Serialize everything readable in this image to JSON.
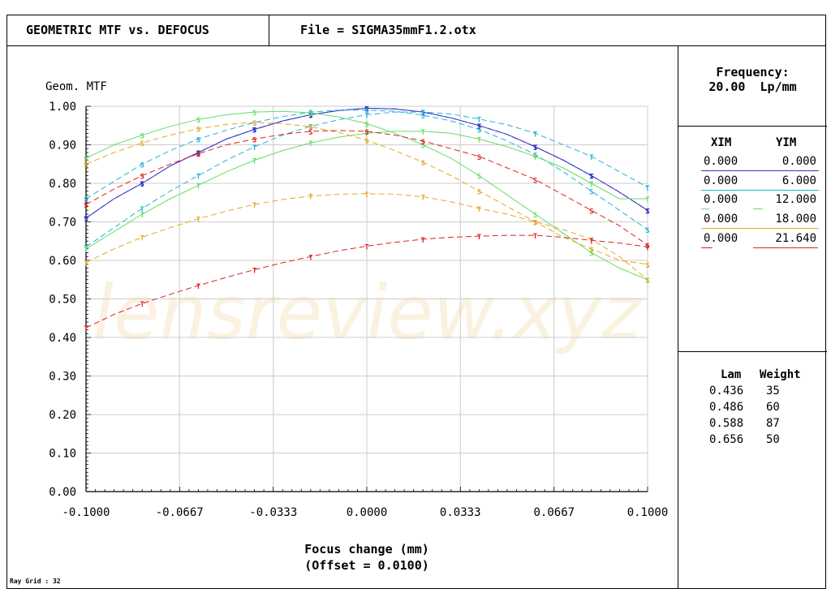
{
  "header": {
    "title": "GEOMETRIC MTF vs. DEFOCUS",
    "file": "File = SIGMA35mmF1.2.otx"
  },
  "side": {
    "frequency_label": "Frequency:",
    "frequency_value": "20.00  Lp/mm",
    "field_headers": [
      "XIM",
      "YIM"
    ],
    "fields": [
      {
        "xim": "0.000",
        "yim": "0.000",
        "color": "#3333cc"
      },
      {
        "xim": "0.000",
        "yim": "6.000",
        "color": "#22b4d8"
      },
      {
        "xim": "0.000",
        "yim": "12.000",
        "color": "#66dd66"
      },
      {
        "xim": "0.000",
        "yim": "18.000",
        "color": "#e6a822"
      },
      {
        "xim": "0.000",
        "yim": "21.640",
        "color": "#dd2222"
      }
    ],
    "wavelength_headers": [
      "Lam",
      "Weight"
    ],
    "wavelengths": [
      {
        "lam": "0.436",
        "weight": "35"
      },
      {
        "lam": "0.486",
        "weight": "60"
      },
      {
        "lam": "0.588",
        "weight": "87"
      },
      {
        "lam": "0.656",
        "weight": "50"
      }
    ]
  },
  "footer": {
    "ray_grid": "Ray Grid : 32"
  },
  "watermark": "lensreview.xyz",
  "chart_data": {
    "type": "line",
    "title": "",
    "ylabel": "Geom. MTF",
    "xlabel": "Focus change (mm)",
    "xlabel2": "(Offset = 0.0100)",
    "xlim": [
      -0.1,
      0.1
    ],
    "ylim": [
      0.0,
      1.0
    ],
    "grid": true,
    "xticks": [
      "-0.1000",
      "-0.0667",
      "-0.0333",
      "0.0000",
      "0.0333",
      "0.0667",
      "0.1000"
    ],
    "xtick_values": [
      -0.1,
      -0.0667,
      -0.0333,
      0.0,
      0.0333,
      0.0667,
      0.1
    ],
    "yticks": [
      "0.00",
      "0.10",
      "0.20",
      "0.30",
      "0.40",
      "0.50",
      "0.60",
      "0.70",
      "0.80",
      "0.90",
      "1.00"
    ],
    "x": [
      -0.1,
      -0.09,
      -0.08,
      -0.07,
      -0.06,
      -0.05,
      -0.04,
      -0.03,
      -0.02,
      -0.01,
      0.0,
      0.01,
      0.02,
      0.03,
      0.04,
      0.05,
      0.06,
      0.07,
      0.08,
      0.09,
      0.1
    ],
    "series": [
      {
        "name": "YIM 0.000 S",
        "color": "#3333cc",
        "dash": false,
        "marker": "S",
        "values": [
          0.71,
          0.76,
          0.8,
          0.845,
          0.88,
          0.915,
          0.94,
          0.962,
          0.978,
          0.989,
          0.995,
          0.993,
          0.985,
          0.97,
          0.95,
          0.927,
          0.895,
          0.86,
          0.82,
          0.777,
          0.73
        ]
      },
      {
        "name": "YIM 0.000 T",
        "color": "#3333cc",
        "dash": true,
        "marker": "T",
        "values": [
          0.71,
          0.76,
          0.8,
          0.845,
          0.88,
          0.915,
          0.94,
          0.962,
          0.978,
          0.989,
          0.995,
          0.993,
          0.985,
          0.97,
          0.95,
          0.927,
          0.895,
          0.86,
          0.82,
          0.777,
          0.73
        ]
      },
      {
        "name": "YIM 6.000 S",
        "color": "#22b4d8",
        "dash": true,
        "marker": "S",
        "values": [
          0.76,
          0.805,
          0.85,
          0.885,
          0.915,
          0.938,
          0.958,
          0.973,
          0.985,
          0.99,
          0.99,
          0.987,
          0.977,
          0.962,
          0.94,
          0.91,
          0.875,
          0.83,
          0.78,
          0.73,
          0.68
        ]
      },
      {
        "name": "YIM 6.000 T",
        "color": "#22b4d8",
        "dash": true,
        "marker": "T",
        "values": [
          0.635,
          0.685,
          0.735,
          0.78,
          0.82,
          0.86,
          0.895,
          0.925,
          0.948,
          0.965,
          0.978,
          0.985,
          0.985,
          0.98,
          0.967,
          0.952,
          0.93,
          0.9,
          0.87,
          0.83,
          0.79
        ]
      },
      {
        "name": "YIM 12.000 S",
        "color": "#66dd66",
        "dash": false,
        "marker": "S",
        "values": [
          0.865,
          0.9,
          0.925,
          0.948,
          0.966,
          0.978,
          0.985,
          0.987,
          0.983,
          0.972,
          0.955,
          0.93,
          0.9,
          0.865,
          0.82,
          0.77,
          0.72,
          0.67,
          0.62,
          0.58,
          0.55
        ]
      },
      {
        "name": "YIM 12.000 T",
        "color": "#66dd66",
        "dash": false,
        "marker": "T",
        "values": [
          0.63,
          0.675,
          0.72,
          0.76,
          0.795,
          0.83,
          0.86,
          0.885,
          0.905,
          0.92,
          0.93,
          0.935,
          0.935,
          0.93,
          0.915,
          0.895,
          0.87,
          0.84,
          0.8,
          0.76,
          0.76
        ]
      },
      {
        "name": "YIM 18.000 S",
        "color": "#e6a822",
        "dash": true,
        "marker": "S",
        "values": [
          0.85,
          0.88,
          0.905,
          0.925,
          0.942,
          0.953,
          0.958,
          0.955,
          0.947,
          0.932,
          0.912,
          0.885,
          0.855,
          0.82,
          0.78,
          0.74,
          0.7,
          0.66,
          0.63,
          0.6,
          0.59
        ]
      },
      {
        "name": "YIM 18.000 T",
        "color": "#e6a822",
        "dash": true,
        "marker": "T",
        "values": [
          0.595,
          0.63,
          0.66,
          0.685,
          0.708,
          0.728,
          0.745,
          0.758,
          0.767,
          0.772,
          0.773,
          0.772,
          0.765,
          0.752,
          0.735,
          0.72,
          0.7,
          0.68,
          0.655,
          0.61,
          0.55
        ]
      },
      {
        "name": "YIM 21.640 S",
        "color": "#dd2222",
        "dash": true,
        "marker": "S",
        "values": [
          0.745,
          0.785,
          0.82,
          0.85,
          0.877,
          0.9,
          0.915,
          0.927,
          0.935,
          0.937,
          0.935,
          0.925,
          0.91,
          0.89,
          0.87,
          0.84,
          0.81,
          0.77,
          0.73,
          0.69,
          0.64
        ]
      },
      {
        "name": "YIM 21.640 T",
        "color": "#dd2222",
        "dash": true,
        "marker": "T",
        "values": [
          0.425,
          0.46,
          0.488,
          0.512,
          0.535,
          0.556,
          0.576,
          0.594,
          0.61,
          0.625,
          0.637,
          0.647,
          0.655,
          0.66,
          0.663,
          0.665,
          0.665,
          0.66,
          0.652,
          0.645,
          0.635
        ]
      }
    ]
  }
}
